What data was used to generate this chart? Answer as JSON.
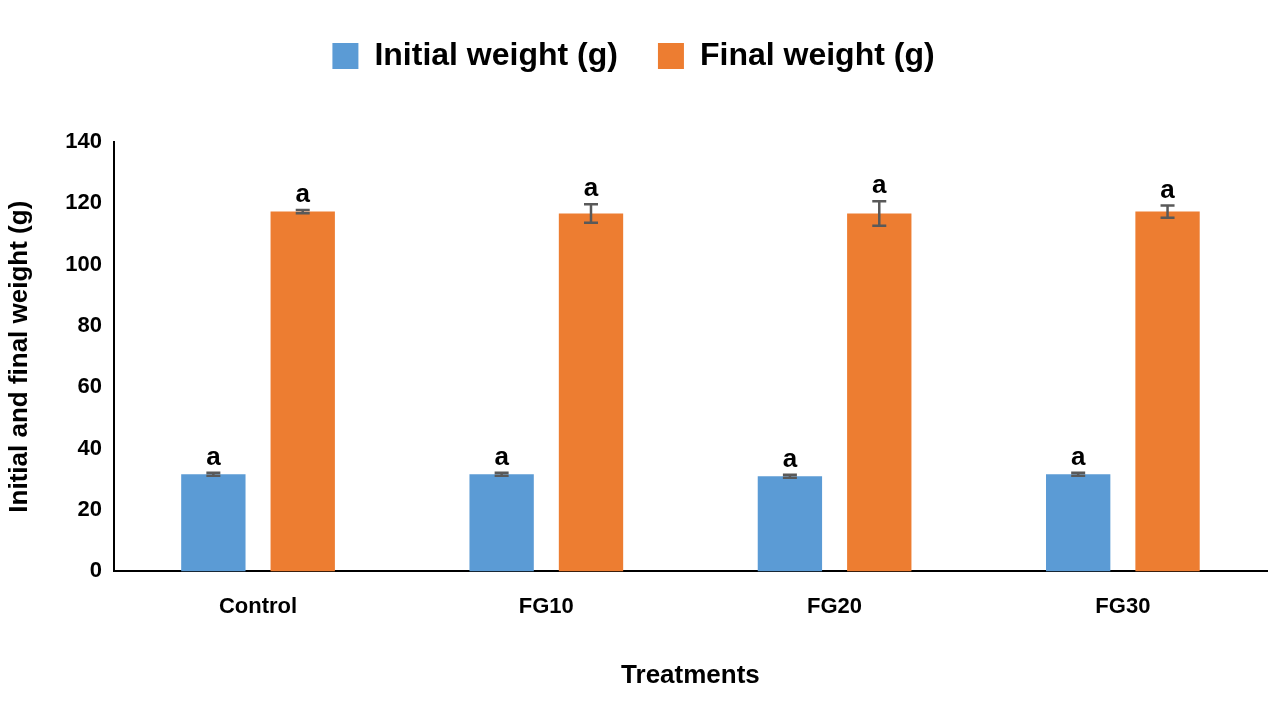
{
  "chart_data": {
    "type": "bar",
    "xlabel": "Treatments",
    "ylabel": "Initial and final weight (g)",
    "categories": [
      "Control",
      "FG10",
      "FG20",
      "FG30"
    ],
    "series": [
      {
        "name": "Initial weight (g)",
        "color": "#5b9bd5",
        "values": [
          31.7,
          31.7,
          31,
          31.7
        ],
        "errors": [
          0.5,
          0.5,
          0.5,
          0.5
        ],
        "value_labels": [
          "a",
          "a",
          "a",
          "a"
        ]
      },
      {
        "name": "Final weight (g)",
        "color": "#ed7d31",
        "values": [
          117.3,
          116.7,
          116.7,
          117.3
        ],
        "errors": [
          0.5,
          3,
          4,
          2
        ],
        "value_labels": [
          "a",
          "a",
          "a",
          "a"
        ]
      }
    ],
    "ylim": [
      0,
      140
    ],
    "yticks": [
      0,
      20,
      40,
      60,
      80,
      100,
      120,
      140
    ],
    "grid": false,
    "legend": "top"
  }
}
